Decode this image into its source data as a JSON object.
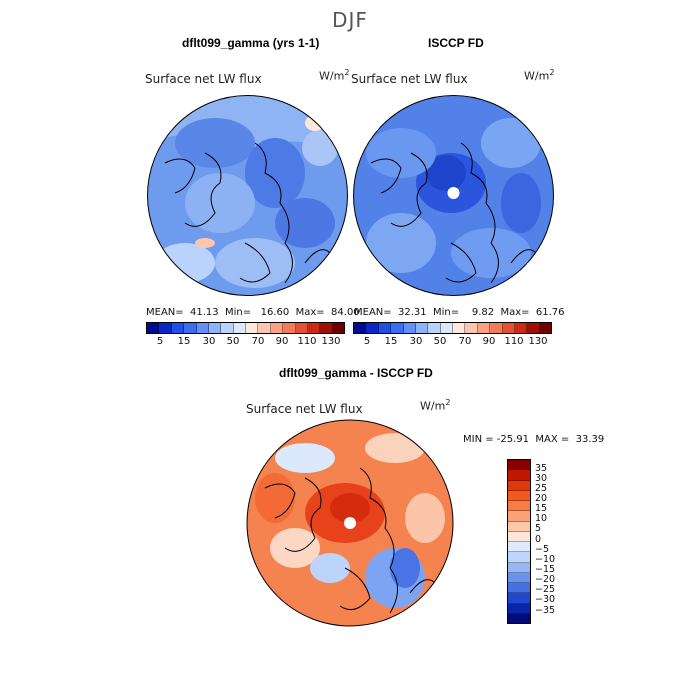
{
  "season": "DJF",
  "panels": {
    "left": {
      "title": "dflt099_gamma (yrs 1-1)",
      "map_label": "Surface net LW flux",
      "units": "W/m",
      "units_exp": "2",
      "stats_text": "MEAN=  41.13  Min=   16.60  Max=  84.00",
      "mean": 41.13,
      "min": 16.6,
      "max": 84.0
    },
    "right": {
      "title": "ISCCP FD",
      "map_label": "Surface net LW flux",
      "units": "W/m",
      "units_exp": "2",
      "stats_text": "MEAN=  32.31  Min=    9.82  Max=  61.76",
      "mean": 32.31,
      "min": 9.82,
      "max": 61.76
    },
    "diff": {
      "title": "dflt099_gamma - ISCCP FD",
      "map_label": "Surface net LW flux",
      "units": "W/m",
      "units_exp": "2",
      "stats_text": "MIN = -25.91  MAX =  33.39",
      "min": -25.91,
      "max": 33.39
    }
  },
  "chart_data": [
    {
      "type": "heatmap",
      "projection": "north polar stereographic",
      "title": "dflt099_gamma (yrs 1-1)",
      "subtitle": "Surface net LW flux",
      "units": "W/m2",
      "stats": {
        "mean": 41.13,
        "min": 16.6,
        "max": 84.0
      },
      "colorbar": {
        "ticks": [
          "5",
          "15",
          "30",
          "50",
          "70",
          "90",
          "110",
          "130"
        ],
        "colors": [
          "#000a8c",
          "#0a28c8",
          "#1e50e6",
          "#3c6ef0",
          "#6490f5",
          "#8cb4fa",
          "#b9d3fc",
          "#dce9fd",
          "#fde9dc",
          "#fcc7ad",
          "#f8a283",
          "#f27c58",
          "#e55031",
          "#cc2a12",
          "#a00f05",
          "#6e0000"
        ]
      }
    },
    {
      "type": "heatmap",
      "projection": "north polar stereographic",
      "title": "ISCCP FD",
      "subtitle": "Surface net LW flux",
      "units": "W/m2",
      "stats": {
        "mean": 32.31,
        "min": 9.82,
        "max": 61.76
      },
      "colorbar": {
        "ticks": [
          "5",
          "15",
          "30",
          "50",
          "70",
          "90",
          "110",
          "130"
        ],
        "colors": [
          "#000a8c",
          "#0a28c8",
          "#1e50e6",
          "#3c6ef0",
          "#6490f5",
          "#8cb4fa",
          "#b9d3fc",
          "#dce9fd",
          "#fde9dc",
          "#fcc7ad",
          "#f8a283",
          "#f27c58",
          "#e55031",
          "#cc2a12",
          "#a00f05",
          "#6e0000"
        ]
      }
    },
    {
      "type": "heatmap",
      "projection": "north polar stereographic",
      "title": "dflt099_gamma - ISCCP FD",
      "subtitle": "Surface net LW flux",
      "units": "W/m2",
      "stats": {
        "min": -25.91,
        "max": 33.39
      },
      "colorbar": {
        "ticks": [
          "35",
          "30",
          "25",
          "20",
          "15",
          "10",
          "5",
          "0",
          "−5",
          "−10",
          "−15",
          "−20",
          "−25",
          "−30",
          "−35"
        ],
        "colors": [
          "#8a0000",
          "#c01800",
          "#e0380a",
          "#f05a1e",
          "#f67c44",
          "#f9a278",
          "#fcc8aa",
          "#fde7da",
          "#dfeafc",
          "#bed6fa",
          "#95b7f5",
          "#6b93ed",
          "#4470e2",
          "#2048cc",
          "#0a26a8",
          "#000a78"
        ]
      }
    }
  ]
}
